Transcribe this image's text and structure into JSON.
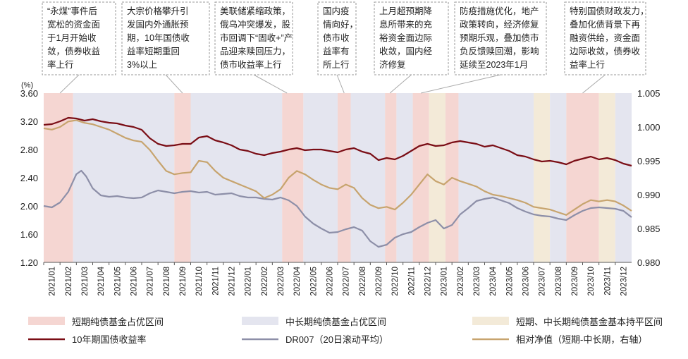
{
  "chart_data": {
    "type": "line",
    "left_unit": "(%)",
    "left_ylim": [
      1.2,
      3.6
    ],
    "left_ticks": [
      "1.20",
      "1.60",
      "2.00",
      "2.40",
      "2.80",
      "3.20",
      "3.60"
    ],
    "right_ylim": [
      0.98,
      1.005
    ],
    "right_ticks": [
      "0.980",
      "0.985",
      "0.990",
      "0.995",
      "1.000",
      "1.005"
    ],
    "x_labels": [
      "2021/01",
      "2021/02",
      "2021/03",
      "2021/04",
      "2021/05",
      "2021/06",
      "2021/07",
      "2021/08",
      "2021/09",
      "2021/10",
      "2021/11",
      "2021/12",
      "2022/01",
      "2022/02",
      "2022/03",
      "2022/04",
      "2022/05",
      "2022/06",
      "2022/07",
      "2022/08",
      "2022/09",
      "2022/10",
      "2022/11",
      "2022/12",
      "2023/01",
      "2023/02",
      "2023/03",
      "2023/04",
      "2023/05",
      "2023/06",
      "2023/07",
      "2023/08",
      "2023/09",
      "2023/10",
      "2023/11",
      "2023/12"
    ],
    "bands": [
      {
        "type": "short",
        "from": 0.0,
        "to": 1.8
      },
      {
        "type": "long",
        "from": 1.8,
        "to": 8.0
      },
      {
        "type": "short",
        "from": 8.0,
        "to": 9.0
      },
      {
        "type": "long",
        "from": 9.0,
        "to": 14.6
      },
      {
        "type": "short",
        "from": 14.6,
        "to": 15.9
      },
      {
        "type": "long",
        "from": 15.9,
        "to": 18.0
      },
      {
        "type": "short",
        "from": 18.0,
        "to": 18.8
      },
      {
        "type": "long",
        "from": 18.8,
        "to": 20.9
      },
      {
        "type": "short",
        "from": 20.9,
        "to": 21.6
      },
      {
        "type": "long",
        "from": 21.6,
        "to": 22.6
      },
      {
        "type": "short",
        "from": 22.6,
        "to": 23.6
      },
      {
        "type": "neutral",
        "from": 23.6,
        "to": 24.6
      },
      {
        "type": "short",
        "from": 24.6,
        "to": 25.4
      },
      {
        "type": "long",
        "from": 25.4,
        "to": 30.0
      },
      {
        "type": "neutral",
        "from": 30.0,
        "to": 31.0
      },
      {
        "type": "long",
        "from": 31.0,
        "to": 32.0
      },
      {
        "type": "short",
        "from": 32.0,
        "to": 34.0
      },
      {
        "type": "neutral",
        "from": 34.0,
        "to": 35.0
      },
      {
        "type": "long",
        "from": 35.0,
        "to": 36.0
      }
    ],
    "annotations": [
      {
        "text": "“永煤”事件后宽松的资金面于1月开始收敛，债券收益率上行",
        "lines": [
          "“永煤”事件后",
          "宽松的资金面",
          "于1月开始收",
          "敛，债券收益",
          "率上行"
        ],
        "target": 1.0
      },
      {
        "text": "大宗价格攀升引发国内外通胀预期，10年国债收益率短期重回3%以上",
        "lines": [
          "大宗价格攀升引",
          "发国内外通胀预",
          "期，10年国债收",
          "益率短期重回",
          "3%以上"
        ],
        "target": 8.5
      },
      {
        "text": "美联储紧缩政策，俄乌冲突爆发，股市回调下“固收+”产品迎来赎回压力，债市收益率上行",
        "lines": [
          "美联储紧缩政策，",
          "俄乌冲突爆发，股",
          "市回调下“固收+”产",
          "品迎来赎回压力，",
          "债市收益率上行"
        ],
        "target": 14.9
      },
      {
        "text": "国内疫情向好，债市收益率有所上行",
        "lines": [
          "国内疫",
          "情向好，",
          "债市收",
          "益率有",
          "所上行"
        ],
        "target": 18.4
      },
      {
        "text": "上月超预期降息所带来的充裕资金面边际收敛，国内经济修复",
        "lines": [
          "上月超预期降",
          "息所带来的充",
          "裕资金面边际",
          "收敛，国内经",
          "济修复"
        ],
        "target": 21.2
      },
      {
        "text": "防疫措施优化，地产政策转向，经济修复预期乐观，叠加债市负反馈赎回潮，影响延续至2023年1月",
        "lines": [
          "防疫措施优化，地产",
          "政策转向，经济修复",
          "预期乐观，叠加债市",
          "负反馈赎回潮，影响",
          "延续至2023年1月"
        ],
        "target": 23.1
      },
      {
        "text": "特别国债财政发力，叠加化债背景下再融资供给，资金面边际收敛，债券收益率上行",
        "lines": [
          "特别国债财政发力，",
          "叠加化债背景下再",
          "融资供给，资金面",
          "边际收敛，债券收",
          "益率上行"
        ],
        "target": 33.0
      }
    ],
    "series": [
      {
        "name": "10年期国债收益率",
        "axis": "left",
        "color": "#7a0d15",
        "points": [
          [
            0,
            3.15
          ],
          [
            0.5,
            3.16
          ],
          [
            1.0,
            3.2
          ],
          [
            1.5,
            3.25
          ],
          [
            2.0,
            3.24
          ],
          [
            2.5,
            3.21
          ],
          [
            3.0,
            3.23
          ],
          [
            3.5,
            3.2
          ],
          [
            4.0,
            3.18
          ],
          [
            4.5,
            3.17
          ],
          [
            5.0,
            3.14
          ],
          [
            5.5,
            3.12
          ],
          [
            6.0,
            3.08
          ],
          [
            6.5,
            2.96
          ],
          [
            7.0,
            2.88
          ],
          [
            7.5,
            2.85
          ],
          [
            8.0,
            2.86
          ],
          [
            8.5,
            2.88
          ],
          [
            9.0,
            2.88
          ],
          [
            9.5,
            2.97
          ],
          [
            10.0,
            2.99
          ],
          [
            10.5,
            2.93
          ],
          [
            11.0,
            2.9
          ],
          [
            11.5,
            2.86
          ],
          [
            12.0,
            2.8
          ],
          [
            12.5,
            2.78
          ],
          [
            13.0,
            2.74
          ],
          [
            13.5,
            2.72
          ],
          [
            14.0,
            2.75
          ],
          [
            14.5,
            2.77
          ],
          [
            15.0,
            2.8
          ],
          [
            15.5,
            2.82
          ],
          [
            16.0,
            2.79
          ],
          [
            16.5,
            2.8
          ],
          [
            17.0,
            2.8
          ],
          [
            17.5,
            2.78
          ],
          [
            18.0,
            2.76
          ],
          [
            18.5,
            2.8
          ],
          [
            19.0,
            2.82
          ],
          [
            19.5,
            2.77
          ],
          [
            20.0,
            2.74
          ],
          [
            20.5,
            2.65
          ],
          [
            21.0,
            2.68
          ],
          [
            21.5,
            2.66
          ],
          [
            22.0,
            2.71
          ],
          [
            22.5,
            2.78
          ],
          [
            23.0,
            2.85
          ],
          [
            23.5,
            2.88
          ],
          [
            24.0,
            2.85
          ],
          [
            24.5,
            2.86
          ],
          [
            25.0,
            2.9
          ],
          [
            25.5,
            2.92
          ],
          [
            26.0,
            2.9
          ],
          [
            26.5,
            2.88
          ],
          [
            27.0,
            2.84
          ],
          [
            27.5,
            2.86
          ],
          [
            28.0,
            2.82
          ],
          [
            28.5,
            2.78
          ],
          [
            29.0,
            2.72
          ],
          [
            29.5,
            2.7
          ],
          [
            30.0,
            2.66
          ],
          [
            30.5,
            2.63
          ],
          [
            31.0,
            2.64
          ],
          [
            31.5,
            2.62
          ],
          [
            32.0,
            2.59
          ],
          [
            32.5,
            2.64
          ],
          [
            33.0,
            2.67
          ],
          [
            33.5,
            2.7
          ],
          [
            34.0,
            2.66
          ],
          [
            34.5,
            2.68
          ],
          [
            35.0,
            2.65
          ],
          [
            35.5,
            2.6
          ],
          [
            36.0,
            2.57
          ]
        ]
      },
      {
        "name": "DR007（20日滚动平均）",
        "axis": "left",
        "color": "#8d8fa8",
        "points": [
          [
            0,
            2.0
          ],
          [
            0.5,
            1.98
          ],
          [
            1.0,
            2.05
          ],
          [
            1.5,
            2.2
          ],
          [
            2.0,
            2.45
          ],
          [
            2.3,
            2.5
          ],
          [
            2.6,
            2.42
          ],
          [
            3.0,
            2.25
          ],
          [
            3.5,
            2.15
          ],
          [
            4.0,
            2.13
          ],
          [
            4.5,
            2.14
          ],
          [
            5.0,
            2.12
          ],
          [
            5.5,
            2.11
          ],
          [
            6.0,
            2.12
          ],
          [
            6.5,
            2.18
          ],
          [
            7.0,
            2.22
          ],
          [
            7.5,
            2.2
          ],
          [
            8.0,
            2.18
          ],
          [
            8.5,
            2.2
          ],
          [
            9.0,
            2.21
          ],
          [
            9.5,
            2.19
          ],
          [
            10.0,
            2.2
          ],
          [
            10.5,
            2.16
          ],
          [
            11.0,
            2.17
          ],
          [
            11.5,
            2.18
          ],
          [
            12.0,
            2.14
          ],
          [
            12.5,
            2.12
          ],
          [
            13.0,
            2.12
          ],
          [
            13.5,
            2.1
          ],
          [
            14.0,
            2.09
          ],
          [
            14.5,
            2.12
          ],
          [
            15.0,
            2.08
          ],
          [
            15.5,
            2.0
          ],
          [
            16.0,
            1.85
          ],
          [
            16.5,
            1.75
          ],
          [
            17.0,
            1.68
          ],
          [
            17.5,
            1.62
          ],
          [
            18.0,
            1.63
          ],
          [
            18.5,
            1.67
          ],
          [
            19.0,
            1.7
          ],
          [
            19.5,
            1.65
          ],
          [
            20.0,
            1.5
          ],
          [
            20.5,
            1.42
          ],
          [
            21.0,
            1.45
          ],
          [
            21.5,
            1.55
          ],
          [
            22.0,
            1.6
          ],
          [
            22.5,
            1.63
          ],
          [
            23.0,
            1.7
          ],
          [
            23.5,
            1.76
          ],
          [
            24.0,
            1.8
          ],
          [
            24.5,
            1.68
          ],
          [
            25.0,
            1.73
          ],
          [
            25.5,
            1.88
          ],
          [
            26.0,
            1.97
          ],
          [
            26.5,
            2.07
          ],
          [
            27.0,
            2.1
          ],
          [
            27.5,
            2.12
          ],
          [
            28.0,
            2.08
          ],
          [
            28.5,
            2.04
          ],
          [
            29.0,
            1.97
          ],
          [
            29.5,
            1.92
          ],
          [
            30.0,
            1.88
          ],
          [
            30.5,
            1.86
          ],
          [
            31.0,
            1.85
          ],
          [
            31.5,
            1.82
          ],
          [
            32.0,
            1.8
          ],
          [
            32.5,
            1.87
          ],
          [
            33.0,
            1.93
          ],
          [
            33.5,
            1.97
          ],
          [
            34.0,
            1.98
          ],
          [
            34.5,
            1.97
          ],
          [
            35.0,
            1.96
          ],
          [
            35.5,
            1.93
          ],
          [
            36.0,
            1.84
          ]
        ]
      },
      {
        "name": "相对净值（短期-中长期，右轴）",
        "axis": "right",
        "color": "#c7a46e",
        "points": [
          [
            0,
            0.9998
          ],
          [
            0.5,
            0.9996
          ],
          [
            1.0,
            1.0
          ],
          [
            1.5,
            1.0008
          ],
          [
            2.0,
            1.001
          ],
          [
            2.5,
            1.0006
          ],
          [
            3.0,
            1.0004
          ],
          [
            3.5,
            1.0
          ],
          [
            4.0,
            0.9996
          ],
          [
            4.5,
            0.999
          ],
          [
            5.0,
            0.9984
          ],
          [
            5.5,
            0.998
          ],
          [
            6.0,
            0.9978
          ],
          [
            6.5,
            0.9966
          ],
          [
            7.0,
            0.995
          ],
          [
            7.5,
            0.9935
          ],
          [
            8.0,
            0.993
          ],
          [
            8.5,
            0.9932
          ],
          [
            9.0,
            0.9933
          ],
          [
            9.5,
            0.995
          ],
          [
            10.0,
            0.9948
          ],
          [
            10.5,
            0.9935
          ],
          [
            11.0,
            0.9925
          ],
          [
            11.5,
            0.992
          ],
          [
            12.0,
            0.9915
          ],
          [
            12.5,
            0.991
          ],
          [
            13.0,
            0.9905
          ],
          [
            13.5,
            0.9895
          ],
          [
            14.0,
            0.99
          ],
          [
            14.5,
            0.9908
          ],
          [
            15.0,
            0.9925
          ],
          [
            15.5,
            0.9935
          ],
          [
            16.0,
            0.993
          ],
          [
            16.5,
            0.9922
          ],
          [
            17.0,
            0.9915
          ],
          [
            17.5,
            0.991
          ],
          [
            18.0,
            0.9908
          ],
          [
            18.5,
            0.9915
          ],
          [
            19.0,
            0.991
          ],
          [
            19.5,
            0.9895
          ],
          [
            20.0,
            0.9885
          ],
          [
            20.5,
            0.988
          ],
          [
            21.0,
            0.9882
          ],
          [
            21.5,
            0.9878
          ],
          [
            22.0,
            0.9888
          ],
          [
            22.5,
            0.99
          ],
          [
            23.0,
            0.9915
          ],
          [
            23.5,
            0.993
          ],
          [
            24.0,
            0.992
          ],
          [
            24.5,
            0.9915
          ],
          [
            25.0,
            0.9925
          ],
          [
            25.5,
            0.992
          ],
          [
            26.0,
            0.9916
          ],
          [
            26.5,
            0.9912
          ],
          [
            27.0,
            0.9905
          ],
          [
            27.5,
            0.99
          ],
          [
            28.0,
            0.9898
          ],
          [
            28.5,
            0.9895
          ],
          [
            29.0,
            0.9892
          ],
          [
            29.5,
            0.9888
          ],
          [
            30.0,
            0.9882
          ],
          [
            30.5,
            0.988
          ],
          [
            31.0,
            0.9878
          ],
          [
            31.5,
            0.9874
          ],
          [
            32.0,
            0.987
          ],
          [
            32.5,
            0.9878
          ],
          [
            33.0,
            0.9886
          ],
          [
            33.5,
            0.9892
          ],
          [
            34.0,
            0.989
          ],
          [
            34.5,
            0.9892
          ],
          [
            35.0,
            0.989
          ],
          [
            35.5,
            0.9884
          ],
          [
            36.0,
            0.9876
          ]
        ]
      }
    ],
    "legend": {
      "items": [
        {
          "key": "short_band",
          "label": "短期纯债基金占优区间",
          "color": "#f5d6d2",
          "kind": "band"
        },
        {
          "key": "long_band",
          "label": "中长期纯债基金占优区间",
          "color": "#e4e5ef",
          "kind": "band"
        },
        {
          "key": "neutral_band",
          "label": "短期、中长期纯债基金基本持平区间",
          "color": "#f3ead8",
          "kind": "band"
        },
        {
          "key": "yield",
          "label": "10年期国债收益率",
          "color": "#7a0d15",
          "kind": "line"
        },
        {
          "key": "dr007",
          "label": "DR007（20日滚动平均）",
          "color": "#8d8fa8",
          "kind": "line"
        },
        {
          "key": "nav",
          "label": "相对净值（短期-中长期，右轴）",
          "color": "#c7a46e",
          "kind": "line"
        }
      ]
    }
  }
}
